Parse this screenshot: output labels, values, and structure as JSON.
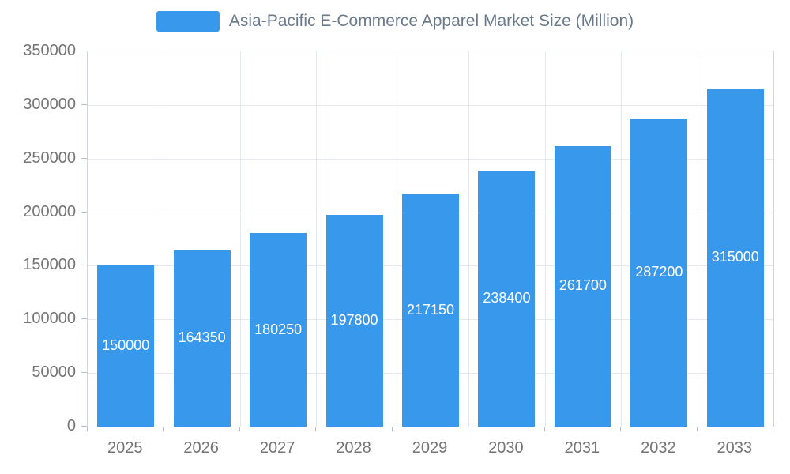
{
  "chart_data": {
    "type": "bar",
    "title": "Asia-Pacific E-Commerce Apparel Market Size (Million)",
    "categories": [
      "2025",
      "2026",
      "2027",
      "2028",
      "2029",
      "2030",
      "2031",
      "2032",
      "2033"
    ],
    "values": [
      150000,
      164350,
      180250,
      197800,
      217150,
      238400,
      261700,
      287200,
      315000
    ],
    "ylim": [
      0,
      350000
    ],
    "yticks": [
      0,
      50000,
      100000,
      150000,
      200000,
      250000,
      300000,
      350000
    ],
    "bar_color": "#3898EC",
    "value_label_color": "#ffffff",
    "axis_label_color": "#757575",
    "grid": true,
    "legend_position": "top"
  }
}
